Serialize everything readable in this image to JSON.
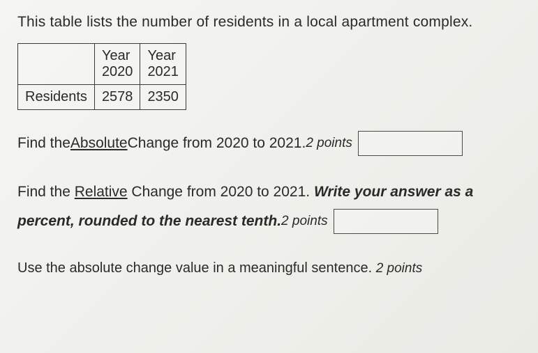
{
  "intro": "This table lists the number of residents in a local apartment complex.",
  "table": {
    "header_empty": "",
    "col1_year": "Year",
    "col2_year": "Year",
    "col1_value": "2020",
    "col2_value": "2021",
    "row_label": "Residents",
    "row_val1": "2578",
    "row_val2": "2350"
  },
  "q1": {
    "prefix": "Find the ",
    "underlined": "Absolute",
    "suffix": " Change from 2020 to 2021. ",
    "points": "2 points"
  },
  "q2": {
    "line1_prefix": "Find the ",
    "line1_underlined": "Relative",
    "line1_suffix": " Change from 2020 to 2021. ",
    "line1_bold": "Write your answer as a",
    "line2_bold": "percent, rounded to the nearest tenth. ",
    "points": "2 points"
  },
  "q3": {
    "text": "Use the absolute change value in a meaningful sentence. ",
    "points": "2 points"
  },
  "style": {
    "border_color": "#3a3a3a",
    "text_color": "#2a2a2a",
    "background": "#f0f0ec"
  }
}
